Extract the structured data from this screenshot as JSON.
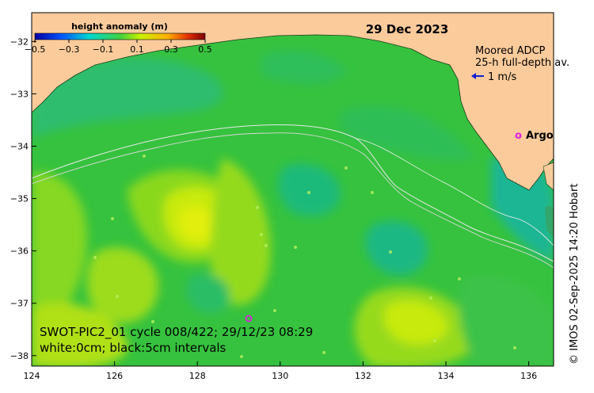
{
  "colorbar": {
    "title": "height anomaly (m)",
    "ticks": [
      "-0.5",
      "-0.3",
      "-0.1",
      "0.1",
      "0.3",
      "0.5"
    ],
    "min": -0.5,
    "max": 0.5
  },
  "date": "29 Dec 2023",
  "legend": {
    "adcp_line1": "Moored ADCP",
    "adcp_line2": "25-h full-depth av.",
    "scale_label": "1 m/s",
    "argo_marker": "o",
    "argo_label": "Argo"
  },
  "annotation": {
    "line1": "SWOT-PIC2_01 cycle 008/422; 29/12/23 08:29",
    "line2": "white:0cm; black:5cm intervals"
  },
  "credit": "© IMOS 02-Sep-2025 14:20 Hobart",
  "axes": {
    "lon_range": [
      124,
      136.6
    ],
    "lat_range": [
      -38.2,
      -31.45
    ],
    "x_ticks": [
      "124",
      "126",
      "128",
      "130",
      "132",
      "134",
      "136"
    ],
    "y_ticks": [
      "-32",
      "-33",
      "-34",
      "-35",
      "-36",
      "-37",
      "-38"
    ]
  },
  "colors": {
    "land": "#fbcb9c",
    "sea_base": "#33c040",
    "argo": "#e020e0",
    "adcp_arrow": "#1020d0"
  }
}
